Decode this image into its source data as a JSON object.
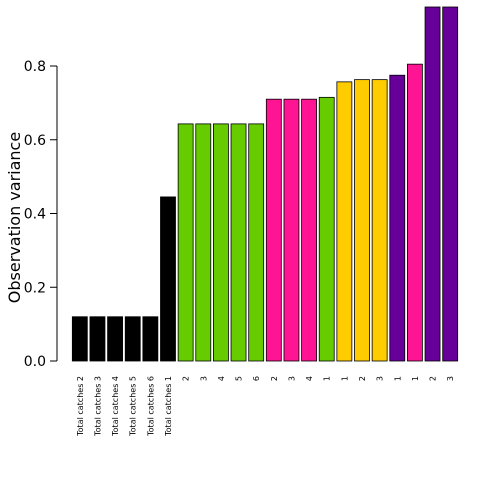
{
  "chart_data": {
    "type": "bar",
    "title": "",
    "xlabel": "",
    "ylabel": "Observation variance",
    "ylim": [
      0,
      0.96
    ],
    "yticks": [
      0.0,
      0.2,
      0.4,
      0.6,
      0.8
    ],
    "ytick_labels": [
      "0.0",
      "0.2",
      "0.4",
      "0.6",
      "0.8"
    ],
    "grid": false,
    "legend": "none",
    "categories": [
      "Total catches 2",
      "Total catches 3",
      "Total catches 4",
      "Total catches 5",
      "Total catches 6",
      "Total catches 1",
      "2",
      "3",
      "4",
      "5",
      "6",
      "2",
      "3",
      "4",
      "1",
      "1",
      "2",
      "3",
      "1",
      "1",
      "2",
      "3"
    ],
    "values": [
      0.12,
      0.12,
      0.12,
      0.12,
      0.12,
      0.445,
      0.643,
      0.643,
      0.643,
      0.643,
      0.643,
      0.71,
      0.71,
      0.71,
      0.715,
      0.757,
      0.763,
      0.763,
      0.775,
      0.805,
      0.96,
      0.96
    ],
    "colors": [
      "#000000",
      "#000000",
      "#000000",
      "#000000",
      "#000000",
      "#000000",
      "#66cc00",
      "#66cc00",
      "#66cc00",
      "#66cc00",
      "#66cc00",
      "#ff1493",
      "#ff1493",
      "#ff1493",
      "#66cc00",
      "#ffcc00",
      "#ffcc00",
      "#ffcc00",
      "#660099",
      "#ff1493",
      "#660099",
      "#660099"
    ]
  }
}
